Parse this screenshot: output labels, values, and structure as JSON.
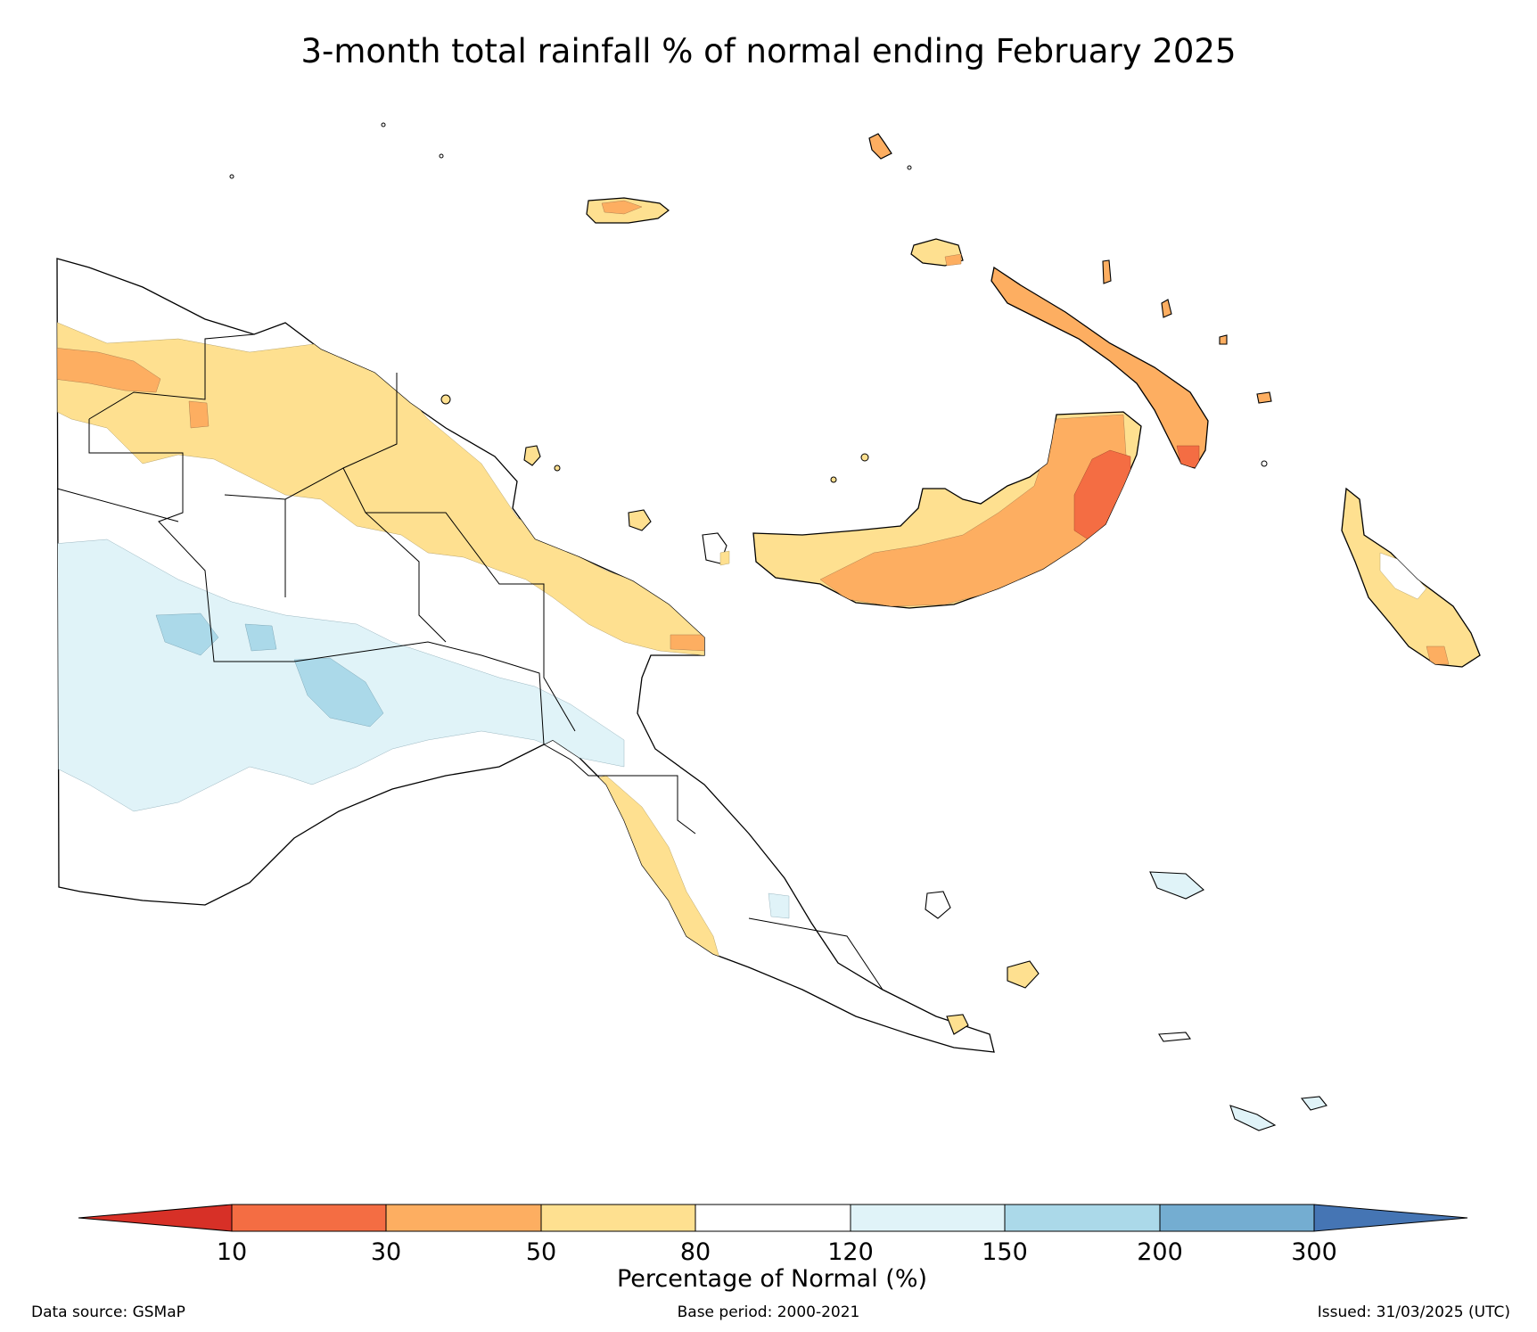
{
  "title": "3-month total rainfall % of normal ending February 2025",
  "colorbar": {
    "label": "Percentage of Normal (%)",
    "ticks": [
      "10",
      "30",
      "50",
      "80",
      "120",
      "150",
      "200",
      "300"
    ],
    "colors": {
      "under": "#d73027",
      "b10_30": "#f46d43",
      "b30_50": "#fdae61",
      "b50_80": "#fee090",
      "b80_120": "#ffffff",
      "b120_150": "#e0f3f8",
      "b150_200": "#abd9e9",
      "b200_300": "#74add1",
      "over": "#4575b4"
    }
  },
  "footer": {
    "source": "Data source: GSMaP",
    "base": "Base period: 2000-2021",
    "issued": "Issued: 31/03/2025 (UTC)"
  }
}
